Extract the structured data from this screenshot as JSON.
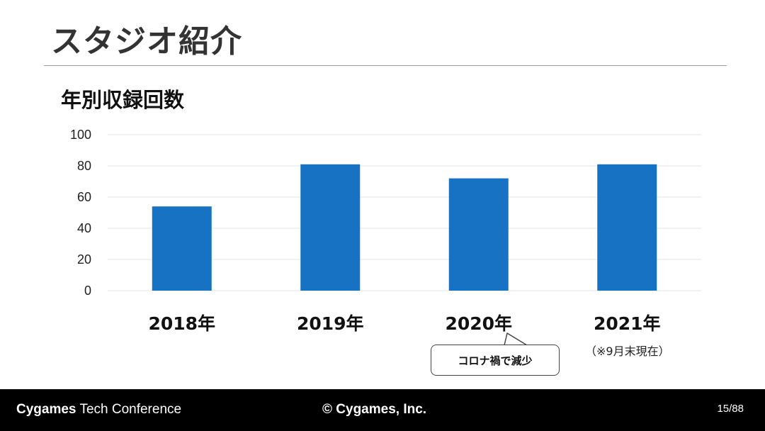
{
  "slide": {
    "title": "スタジオ紹介",
    "chart_heading": "年別収録回数",
    "callout": "コロナ禍で減少",
    "note": "（※9月末現在）"
  },
  "footer": {
    "brand_bold": "Cygames",
    "brand_rest": "Tech Conference",
    "copyright": "© Cygames, Inc.",
    "page": "15/88"
  },
  "colors": {
    "bar": "#1872C4",
    "grid": "#e6e6e6",
    "footer_bg": "#000000"
  },
  "chart_data": {
    "type": "bar",
    "title": "年別収録回数",
    "categories": [
      "2018年",
      "2019年",
      "2020年",
      "2021年"
    ],
    "values": [
      54,
      81,
      72,
      81
    ],
    "ylim": [
      0,
      100
    ],
    "yticks": [
      0,
      20,
      40,
      60,
      80,
      100
    ],
    "grid": true,
    "legend": "none"
  }
}
